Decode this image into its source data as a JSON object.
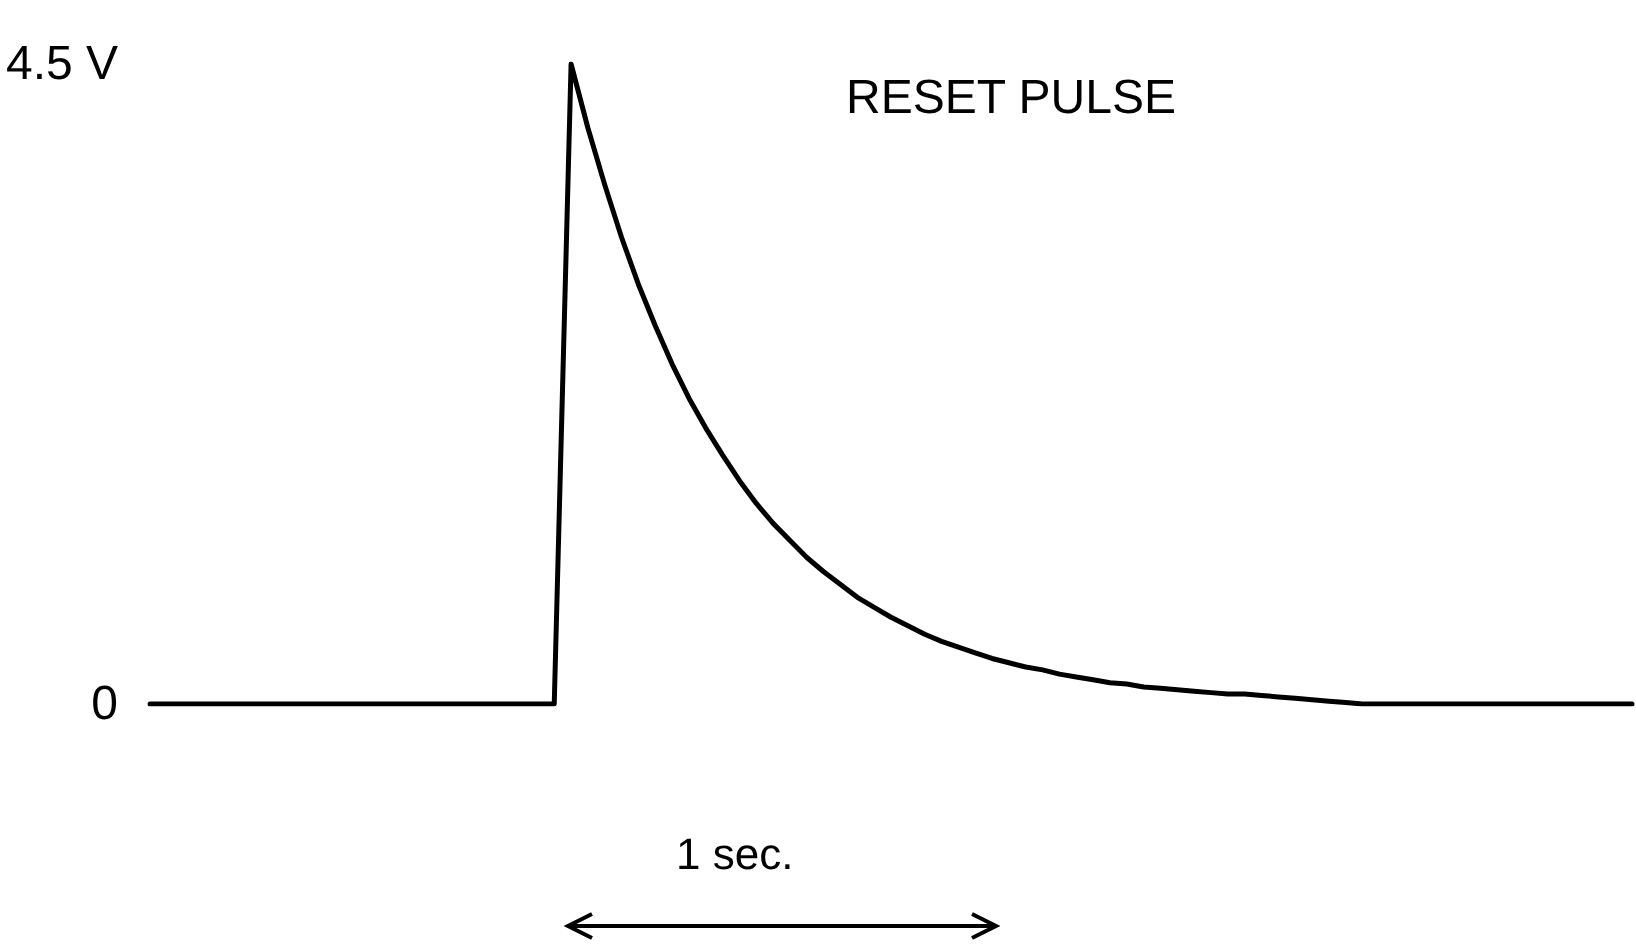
{
  "chart_data": {
    "type": "line",
    "title": "RESET PULSE",
    "annotations": [
      "1 sec."
    ],
    "categories": [
      null,
      null,
      null,
      null,
      null,
      null,
      null,
      null,
      null,
      null,
      null,
      null,
      null,
      null,
      null,
      null,
      null,
      null,
      null,
      null,
      null,
      null,
      null,
      null,
      null,
      null,
      null,
      null,
      null,
      null,
      null,
      null,
      null,
      null,
      null,
      null,
      null,
      null,
      null,
      null,
      null,
      null,
      null,
      null,
      null,
      null,
      null,
      null,
      null,
      null,
      null,
      null,
      null,
      null,
      null,
      null,
      null,
      null,
      null,
      null,
      null,
      null,
      null,
      null,
      null,
      null,
      null,
      null,
      null,
      null,
      null,
      null,
      null,
      null,
      null,
      null,
      null,
      null,
      null,
      null,
      null,
      null,
      null,
      null,
      null,
      null,
      null,
      null,
      null
    ],
    "series": [
      {
        "color": "#000000",
        "values": [
          0,
          0,
          0,
          0,
          0,
          0,
          0,
          0,
          0,
          0,
          0,
          0,
          0,
          0,
          0,
          0,
          0,
          0,
          0,
          0,
          0,
          0,
          0,
          0,
          0,
          4.5,
          4.05,
          3.65,
          3.28,
          2.95,
          2.66,
          2.39,
          2.15,
          1.94,
          1.75,
          1.57,
          1.41,
          1.27,
          1.15,
          1.03,
          0.93,
          0.84,
          0.75,
          0.68,
          0.61,
          0.55,
          0.49,
          0.44,
          0.4,
          0.36,
          0.32,
          0.29,
          0.26,
          0.24,
          0.21,
          0.19,
          0.17,
          0.15,
          0.14,
          0.12,
          0.11,
          0.1,
          0.09,
          0.08,
          0.07,
          0.07,
          0.06,
          0.05,
          0.04,
          0.03,
          0.02,
          0.01,
          0,
          0,
          0,
          0,
          0,
          0,
          0,
          0,
          0,
          0,
          0,
          0,
          0,
          0,
          0,
          0,
          0
        ]
      }
    ],
    "ylim": [
      0,
      4.5
    ],
    "yticks": [
      0,
      {
        "value": 4.5,
        "label": "4.5 V"
      }
    ],
    "tick_labels": "y",
    "line_style": "solid"
  }
}
